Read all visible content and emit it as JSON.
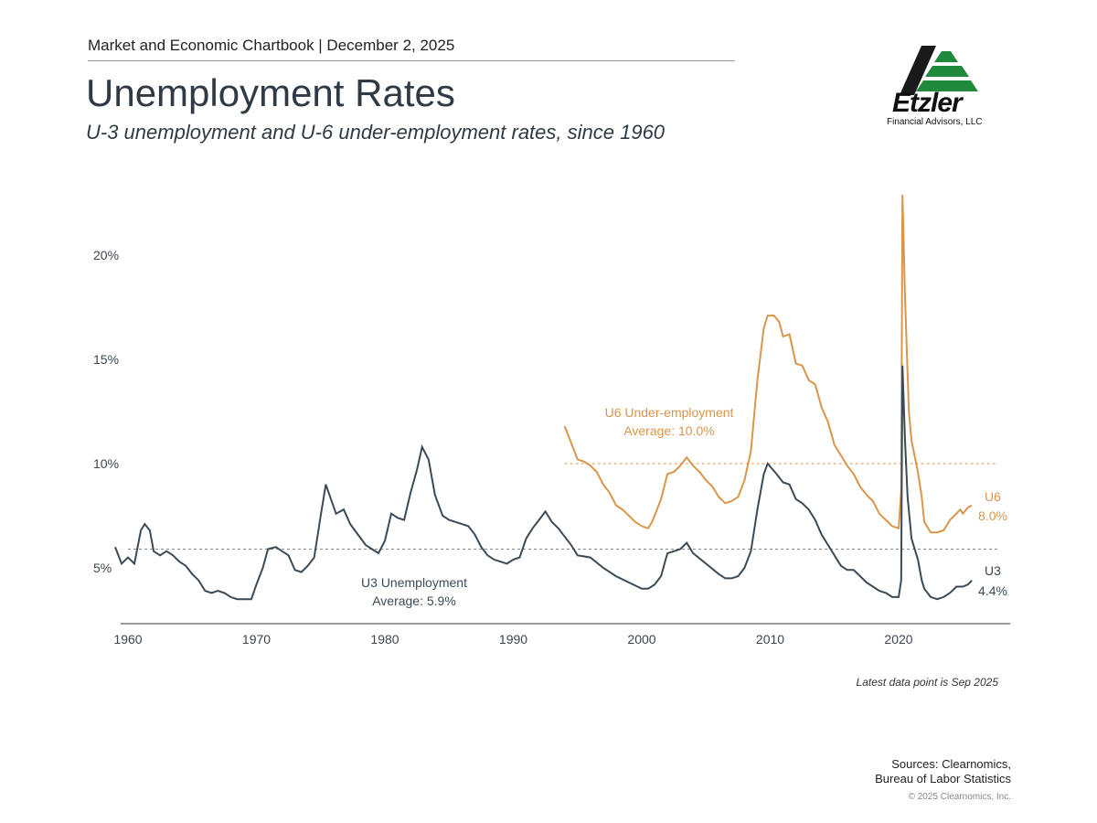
{
  "header": {
    "chartbook": "Market and Economic Chartbook | December 2, 2025",
    "title": "Unemployment Rates",
    "subtitle": "U-3 unemployment and U-6 under-employment rates, since 1960"
  },
  "logo": {
    "name": "Etzler",
    "tagline": "Financial Advisors, LLC",
    "colors": {
      "dark": "#1a1a1a",
      "green": "#1f8a3b"
    }
  },
  "colors": {
    "u3": "#3b4a57",
    "u6": "#d9964b",
    "axis": "#333333"
  },
  "chart_data": {
    "type": "line",
    "title": "Unemployment Rates",
    "xlabel": "",
    "ylabel": "",
    "xlim": [
      1959.0,
      2029.3
    ],
    "ylim": [
      2.5,
      23.5
    ],
    "x_ticks": [
      {
        "value": 1960,
        "label": "1960"
      },
      {
        "value": 1970,
        "label": "1970"
      },
      {
        "value": 1980,
        "label": "1980"
      },
      {
        "value": 1990,
        "label": "1990"
      },
      {
        "value": 2000,
        "label": "2000"
      },
      {
        "value": 2010,
        "label": "2010"
      },
      {
        "value": 2020,
        "label": "2020"
      }
    ],
    "y_ticks": [
      {
        "value": 5,
        "label": "5%"
      },
      {
        "value": 10,
        "label": "10%"
      },
      {
        "value": 15,
        "label": "15%"
      },
      {
        "value": 20,
        "label": "20%"
      }
    ],
    "series": [
      {
        "name": "U3",
        "end_label": "U3",
        "end_value": "4.4%",
        "average": 5.9,
        "average_label_1": "U3 Unemployment",
        "average_label_2": "Average: 5.9%",
        "points": [
          [
            1959.0,
            6.0
          ],
          [
            1959.5,
            5.2
          ],
          [
            1960.0,
            5.5
          ],
          [
            1960.5,
            5.2
          ],
          [
            1961.0,
            6.8
          ],
          [
            1961.3,
            7.1
          ],
          [
            1961.7,
            6.8
          ],
          [
            1962.0,
            5.8
          ],
          [
            1962.5,
            5.6
          ],
          [
            1963.0,
            5.8
          ],
          [
            1963.5,
            5.6
          ],
          [
            1964.0,
            5.3
          ],
          [
            1964.5,
            5.1
          ],
          [
            1965.0,
            4.7
          ],
          [
            1965.5,
            4.4
          ],
          [
            1966.0,
            3.9
          ],
          [
            1966.5,
            3.8
          ],
          [
            1967.0,
            3.9
          ],
          [
            1967.5,
            3.8
          ],
          [
            1968.0,
            3.6
          ],
          [
            1968.5,
            3.5
          ],
          [
            1969.0,
            3.5
          ],
          [
            1969.6,
            3.5
          ],
          [
            1970.0,
            4.2
          ],
          [
            1970.5,
            5.0
          ],
          [
            1970.9,
            5.9
          ],
          [
            1971.5,
            6.0
          ],
          [
            1972.0,
            5.8
          ],
          [
            1972.5,
            5.6
          ],
          [
            1973.0,
            4.9
          ],
          [
            1973.5,
            4.8
          ],
          [
            1974.0,
            5.1
          ],
          [
            1974.5,
            5.5
          ],
          [
            1975.0,
            7.5
          ],
          [
            1975.4,
            9.0
          ],
          [
            1975.8,
            8.3
          ],
          [
            1976.2,
            7.6
          ],
          [
            1976.8,
            7.8
          ],
          [
            1977.3,
            7.1
          ],
          [
            1977.9,
            6.6
          ],
          [
            1978.5,
            6.1
          ],
          [
            1979.0,
            5.9
          ],
          [
            1979.5,
            5.7
          ],
          [
            1980.0,
            6.3
          ],
          [
            1980.5,
            7.6
          ],
          [
            1981.0,
            7.4
          ],
          [
            1981.5,
            7.3
          ],
          [
            1982.0,
            8.6
          ],
          [
            1982.5,
            9.7
          ],
          [
            1982.9,
            10.8
          ],
          [
            1983.4,
            10.2
          ],
          [
            1983.9,
            8.5
          ],
          [
            1984.5,
            7.5
          ],
          [
            1985.0,
            7.3
          ],
          [
            1986.0,
            7.1
          ],
          [
            1986.5,
            7.0
          ],
          [
            1987.0,
            6.6
          ],
          [
            1987.5,
            6.0
          ],
          [
            1988.0,
            5.6
          ],
          [
            1988.5,
            5.4
          ],
          [
            1989.0,
            5.3
          ],
          [
            1989.5,
            5.2
          ],
          [
            1990.0,
            5.4
          ],
          [
            1990.5,
            5.5
          ],
          [
            1991.0,
            6.4
          ],
          [
            1991.5,
            6.9
          ],
          [
            1992.0,
            7.3
          ],
          [
            1992.5,
            7.7
          ],
          [
            1993.0,
            7.2
          ],
          [
            1993.5,
            6.9
          ],
          [
            1994.0,
            6.5
          ],
          [
            1994.5,
            6.1
          ],
          [
            1995.0,
            5.6
          ],
          [
            1996.0,
            5.5
          ],
          [
            1997.0,
            5.0
          ],
          [
            1998.0,
            4.6
          ],
          [
            1999.0,
            4.3
          ],
          [
            2000.0,
            4.0
          ],
          [
            2000.5,
            4.0
          ],
          [
            2001.0,
            4.2
          ],
          [
            2001.5,
            4.6
          ],
          [
            2002.0,
            5.7
          ],
          [
            2002.5,
            5.8
          ],
          [
            2003.0,
            5.9
          ],
          [
            2003.5,
            6.2
          ],
          [
            2004.0,
            5.7
          ],
          [
            2005.0,
            5.2
          ],
          [
            2006.0,
            4.7
          ],
          [
            2006.5,
            4.5
          ],
          [
            2007.0,
            4.5
          ],
          [
            2007.5,
            4.6
          ],
          [
            2008.0,
            5.0
          ],
          [
            2008.5,
            5.8
          ],
          [
            2009.0,
            7.8
          ],
          [
            2009.5,
            9.5
          ],
          [
            2009.8,
            10.0
          ],
          [
            2010.5,
            9.5
          ],
          [
            2011.0,
            9.1
          ],
          [
            2011.5,
            9.0
          ],
          [
            2012.0,
            8.3
          ],
          [
            2012.5,
            8.1
          ],
          [
            2013.0,
            7.8
          ],
          [
            2013.5,
            7.3
          ],
          [
            2014.0,
            6.6
          ],
          [
            2014.5,
            6.1
          ],
          [
            2015.0,
            5.6
          ],
          [
            2015.5,
            5.1
          ],
          [
            2016.0,
            4.9
          ],
          [
            2016.5,
            4.9
          ],
          [
            2017.0,
            4.6
          ],
          [
            2017.5,
            4.3
          ],
          [
            2018.0,
            4.1
          ],
          [
            2018.5,
            3.9
          ],
          [
            2019.0,
            3.8
          ],
          [
            2019.5,
            3.6
          ],
          [
            2020.0,
            3.6
          ],
          [
            2020.2,
            4.4
          ],
          [
            2020.3,
            14.7
          ],
          [
            2020.5,
            11.1
          ],
          [
            2020.7,
            8.4
          ],
          [
            2021.0,
            6.4
          ],
          [
            2021.5,
            5.4
          ],
          [
            2021.8,
            4.4
          ],
          [
            2022.0,
            4.0
          ],
          [
            2022.5,
            3.6
          ],
          [
            2023.0,
            3.5
          ],
          [
            2023.5,
            3.6
          ],
          [
            2024.0,
            3.8
          ],
          [
            2024.5,
            4.1
          ],
          [
            2025.0,
            4.1
          ],
          [
            2025.4,
            4.2
          ],
          [
            2025.7,
            4.4
          ]
        ]
      },
      {
        "name": "U6",
        "end_label": "U6",
        "end_value": "8.0%",
        "average": 10.0,
        "average_label_1": "U6 Under-employment",
        "average_label_2": "Average: 10.0%",
        "points": [
          [
            1994.0,
            11.8
          ],
          [
            1994.5,
            11.0
          ],
          [
            1995.0,
            10.2
          ],
          [
            1995.5,
            10.1
          ],
          [
            1996.0,
            9.9
          ],
          [
            1996.5,
            9.6
          ],
          [
            1997.0,
            9.0
          ],
          [
            1997.5,
            8.6
          ],
          [
            1998.0,
            8.0
          ],
          [
            1998.5,
            7.8
          ],
          [
            1999.0,
            7.5
          ],
          [
            1999.5,
            7.2
          ],
          [
            2000.0,
            7.0
          ],
          [
            2000.5,
            6.9
          ],
          [
            2000.8,
            7.2
          ],
          [
            2001.0,
            7.5
          ],
          [
            2001.5,
            8.3
          ],
          [
            2002.0,
            9.5
          ],
          [
            2002.5,
            9.6
          ],
          [
            2003.0,
            9.9
          ],
          [
            2003.5,
            10.3
          ],
          [
            2004.0,
            9.9
          ],
          [
            2004.5,
            9.6
          ],
          [
            2005.0,
            9.2
          ],
          [
            2005.5,
            8.9
          ],
          [
            2006.0,
            8.4
          ],
          [
            2006.5,
            8.1
          ],
          [
            2007.0,
            8.2
          ],
          [
            2007.5,
            8.4
          ],
          [
            2008.0,
            9.2
          ],
          [
            2008.5,
            10.6
          ],
          [
            2009.0,
            14.0
          ],
          [
            2009.5,
            16.5
          ],
          [
            2009.8,
            17.1
          ],
          [
            2010.3,
            17.1
          ],
          [
            2010.7,
            16.8
          ],
          [
            2011.0,
            16.1
          ],
          [
            2011.5,
            16.2
          ],
          [
            2012.0,
            14.8
          ],
          [
            2012.5,
            14.7
          ],
          [
            2013.0,
            14.0
          ],
          [
            2013.5,
            13.8
          ],
          [
            2014.0,
            12.7
          ],
          [
            2014.5,
            12.0
          ],
          [
            2015.0,
            10.9
          ],
          [
            2015.5,
            10.4
          ],
          [
            2016.0,
            9.9
          ],
          [
            2016.5,
            9.5
          ],
          [
            2017.0,
            8.9
          ],
          [
            2017.5,
            8.5
          ],
          [
            2018.0,
            8.2
          ],
          [
            2018.5,
            7.6
          ],
          [
            2019.0,
            7.3
          ],
          [
            2019.5,
            7.0
          ],
          [
            2020.0,
            6.9
          ],
          [
            2020.2,
            8.7
          ],
          [
            2020.3,
            22.9
          ],
          [
            2020.5,
            18.0
          ],
          [
            2020.8,
            12.5
          ],
          [
            2021.0,
            11.1
          ],
          [
            2021.5,
            9.6
          ],
          [
            2021.8,
            8.4
          ],
          [
            2022.0,
            7.2
          ],
          [
            2022.5,
            6.7
          ],
          [
            2023.0,
            6.7
          ],
          [
            2023.5,
            6.8
          ],
          [
            2024.0,
            7.3
          ],
          [
            2024.5,
            7.6
          ],
          [
            2024.8,
            7.8
          ],
          [
            2025.0,
            7.6
          ],
          [
            2025.4,
            7.9
          ],
          [
            2025.7,
            8.0
          ]
        ]
      }
    ],
    "annotation": "Latest data point is Sep 2025"
  },
  "footer": {
    "sources_1": "Sources: Clearnomics,",
    "sources_2": "Bureau of Labor Statistics",
    "copyright": "© 2025 Clearnomics, Inc."
  }
}
